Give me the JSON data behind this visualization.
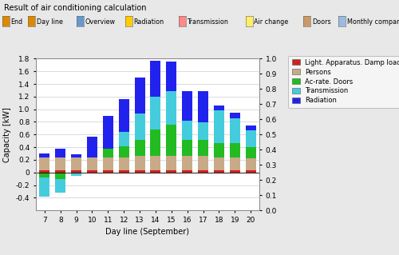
{
  "title": "Result of air conditioning calculation",
  "xlabel": "Day line (September)",
  "ylabel_left": "Capacity [kW]",
  "days": [
    7,
    8,
    9,
    10,
    11,
    12,
    13,
    14,
    15,
    16,
    17,
    18,
    19,
    20
  ],
  "radiation": [
    0.06,
    0.13,
    0.05,
    0.32,
    0.52,
    0.52,
    0.57,
    0.57,
    0.47,
    0.47,
    0.5,
    0.08,
    0.08,
    0.07
  ],
  "transmission_pos": [
    0.0,
    0.0,
    0.0,
    0.0,
    0.0,
    0.23,
    0.42,
    0.52,
    0.52,
    0.3,
    0.28,
    0.52,
    0.4,
    0.27
  ],
  "transmission_neg": [
    -0.3,
    -0.22,
    -0.05,
    0.0,
    0.0,
    0.0,
    0.0,
    0.0,
    0.0,
    0.0,
    0.0,
    0.0,
    0.0,
    0.0
  ],
  "acrate_pos": [
    0.0,
    0.0,
    0.0,
    0.0,
    0.13,
    0.17,
    0.25,
    0.42,
    0.5,
    0.26,
    0.25,
    0.22,
    0.22,
    0.18
  ],
  "acrate_neg": [
    -0.08,
    -0.1,
    0.0,
    0.0,
    0.0,
    0.0,
    0.0,
    0.0,
    0.0,
    0.0,
    0.0,
    0.0,
    0.0,
    0.0
  ],
  "persons": [
    0.2,
    0.2,
    0.2,
    0.2,
    0.2,
    0.2,
    0.22,
    0.22,
    0.22,
    0.22,
    0.22,
    0.2,
    0.2,
    0.18
  ],
  "light": [
    0.04,
    0.04,
    0.04,
    0.04,
    0.04,
    0.04,
    0.04,
    0.04,
    0.04,
    0.04,
    0.04,
    0.04,
    0.04,
    0.04
  ],
  "color_radiation": "#2222ee",
  "color_transmission": "#44ccdd",
  "color_acrate": "#22bb22",
  "color_persons": "#c8aa88",
  "color_light": "#cc2222",
  "bg_color": "#e8e8e8",
  "plot_bg": "#ffffff",
  "ylim_left": [
    -0.6,
    1.8
  ],
  "ylim_right": [
    0.0,
    1.0
  ],
  "yticks_left": [
    -0.4,
    -0.2,
    0.0,
    0.2,
    0.4,
    0.6,
    0.8,
    1.0,
    1.2,
    1.4,
    1.6,
    1.8
  ],
  "yticks_right": [
    0.0,
    0.1,
    0.2,
    0.3,
    0.4,
    0.5,
    0.6,
    0.7,
    0.8,
    0.9,
    1.0
  ],
  "legend_items": [
    "Light. Apparatus. Damp load",
    "Persons",
    "Ac-rate. Doors",
    "Transmission",
    "Radiation"
  ],
  "legend_colors": [
    "#cc2222",
    "#c8aa88",
    "#22bb22",
    "#44ccdd",
    "#2222ee"
  ],
  "toolbar_items": [
    "End",
    "Day line",
    "Overview",
    "Radiation",
    "Transmission",
    "Air change",
    "Doors",
    "Monthly comparison"
  ],
  "toolbar_icon_colors": [
    "#dd8800",
    "#dd8800",
    "#6699cc",
    "#ffcc00",
    "#ff8888",
    "#ffee66",
    "#cc9966",
    "#99bbdd"
  ]
}
